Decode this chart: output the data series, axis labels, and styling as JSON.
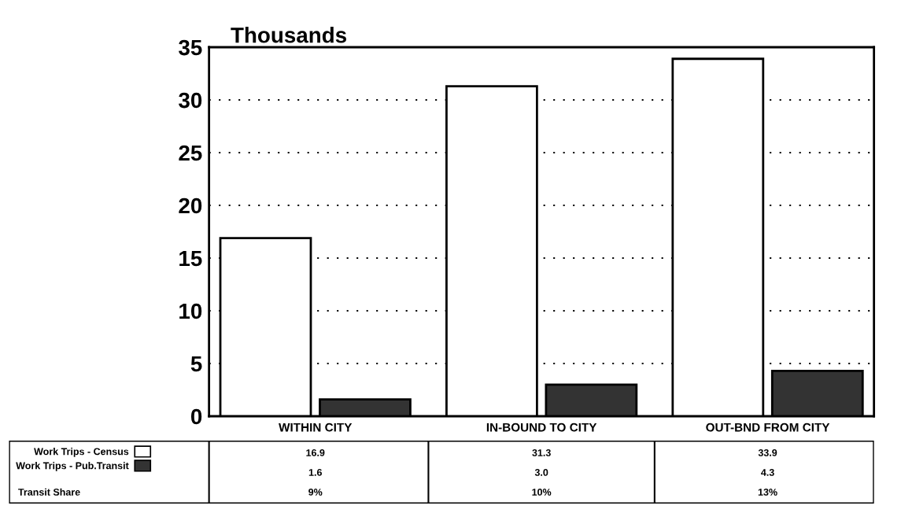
{
  "chart_data": {
    "type": "bar",
    "ylabel": "Thousands",
    "categories": [
      "WITHIN CITY",
      "IN-BOUND TO CITY",
      "OUT-BND FROM CITY"
    ],
    "series": [
      {
        "name": "Work Trips - Census",
        "color": "#ffffff",
        "values": [
          16.9,
          31.3,
          33.9
        ],
        "value_labels": [
          "16.9",
          "31.3",
          "33.9"
        ]
      },
      {
        "name": "Work Trips - Pub.Transit",
        "color": "#333333",
        "values": [
          1.6,
          3.0,
          4.3
        ],
        "value_labels": [
          "1.6",
          "3.0",
          "4.3"
        ]
      }
    ],
    "annotations": [
      "Transit Share",
      "9%",
      "10%",
      "13%"
    ],
    "ylim": [
      0,
      35
    ],
    "yticks": [
      0,
      5,
      10,
      15,
      20,
      25,
      30,
      35
    ],
    "grid": "y",
    "legend": "bottom"
  }
}
